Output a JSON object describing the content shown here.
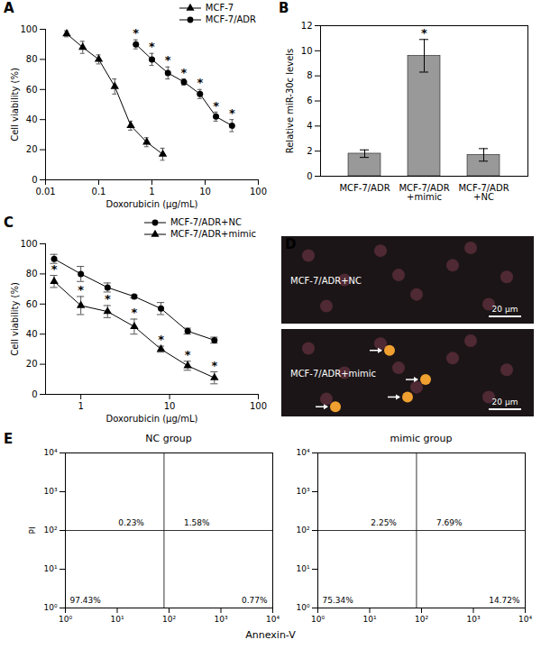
{
  "chart_data": [
    {
      "panel": "A",
      "type": "line",
      "xlabel": "Doxorubicin (μg/mL)",
      "ylabel": "Cell viability (%)",
      "log": "x",
      "xlim": [
        0.01,
        100
      ],
      "xticks": [
        0.01,
        0.1,
        1,
        10,
        100
      ],
      "ylim": [
        0,
        100
      ],
      "yticks": [
        0,
        20,
        40,
        60,
        80,
        100
      ],
      "legend": "top",
      "series": [
        {
          "name": "MCF-7",
          "color": "#000000",
          "marker": "triangle",
          "x": [
            0.025,
            0.05,
            0.1,
            0.2,
            0.4,
            0.8,
            1.6
          ],
          "values": [
            97,
            88,
            80,
            62,
            36,
            25,
            17
          ],
          "errors": [
            2,
            4,
            3,
            5,
            3,
            3,
            4
          ]
        },
        {
          "name": "MCF-7/ADR",
          "color": "#000000",
          "marker": "circle",
          "x": [
            0.5,
            1,
            2,
            4,
            8,
            16,
            32
          ],
          "values": [
            90,
            80,
            71,
            65,
            57,
            42,
            36
          ],
          "errors": [
            3,
            4,
            4,
            2,
            3,
            3,
            4
          ],
          "annotation": "*"
        }
      ]
    },
    {
      "panel": "B",
      "type": "bar",
      "ylabel": "Relative miR-30c levels",
      "categories": [
        "MCF-7/ADR",
        "MCF-7/ADR\n+mimic",
        "MCF-7/ADR\n+NC"
      ],
      "values": [
        1.8,
        9.6,
        1.7
      ],
      "errors": [
        0.3,
        1.3,
        0.5
      ],
      "annotations": [
        null,
        "*",
        null
      ],
      "color": "#999999",
      "ylim": [
        0,
        12
      ],
      "yticks": [
        0,
        2,
        4,
        6,
        8,
        10,
        12
      ]
    },
    {
      "panel": "C",
      "type": "line",
      "xlabel": "Doxorubicin (μg/mL)",
      "ylabel": "Cell viability (%)",
      "log": "x",
      "xlim": [
        0.4,
        100
      ],
      "xticks": [
        1,
        10,
        100
      ],
      "ylim": [
        0,
        100
      ],
      "yticks": [
        0,
        20,
        40,
        60,
        80,
        100
      ],
      "legend": "top",
      "series": [
        {
          "name": "MCF-7/ADR+NC",
          "color": "#000000",
          "marker": "circle",
          "x": [
            0.5,
            1,
            2,
            4,
            8,
            16,
            32
          ],
          "values": [
            90,
            80,
            71,
            65,
            57,
            42,
            36
          ],
          "errors": [
            3,
            5,
            3,
            1,
            4,
            2,
            2
          ]
        },
        {
          "name": "MCF-7/ADR+mimic",
          "color": "#000000",
          "marker": "triangle",
          "x": [
            0.5,
            1,
            2,
            4,
            8,
            16,
            32
          ],
          "values": [
            75,
            59,
            55,
            45,
            30,
            19,
            11
          ],
          "errors": [
            4,
            6,
            4,
            5,
            2,
            3,
            4
          ],
          "annotation": "*"
        }
      ]
    },
    {
      "panel": "D",
      "type": "image",
      "images": [
        {
          "label": "MCF-7/ADR+NC",
          "scale_bar": "20 μm"
        },
        {
          "label": "MCF-7/ADR+mimic",
          "scale_bar": "20 μm"
        }
      ]
    },
    {
      "panel": "E",
      "type": "flow_cytometry",
      "xlabel": "Annexin-V",
      "ylabel": "PI",
      "log": true,
      "xlim": [
        1,
        10000
      ],
      "ylim": [
        1,
        10000
      ],
      "xticks": [
        {
          "value": 1,
          "label": "10⁰"
        },
        {
          "value": 10,
          "label": "10¹"
        },
        {
          "value": 100,
          "label": "10²"
        },
        {
          "value": 1000,
          "label": "10³"
        },
        {
          "value": 10000,
          "label": "10⁴"
        }
      ],
      "yticks": [
        {
          "value": 1,
          "label": "10⁰"
        },
        {
          "value": 10,
          "label": "10¹"
        },
        {
          "value": 100,
          "label": "10²"
        },
        {
          "value": 1000,
          "label": "10³"
        },
        {
          "value": 10000,
          "label": "10⁴"
        }
      ],
      "plots": [
        {
          "title": "NC group",
          "gates": {
            "x": 80,
            "y": 100
          },
          "quadrants": {
            "upper_left": {
              "value": 0.23,
              "label": "0.23%"
            },
            "upper_right": {
              "value": 1.58,
              "label": "1.58%"
            },
            "lower_left": {
              "value": 97.43,
              "label": "97.43%"
            },
            "lower_right": {
              "value": 0.77,
              "label": "0.77%"
            }
          }
        },
        {
          "title": "mimic group",
          "gates": {
            "x": 80,
            "y": 100
          },
          "quadrants": {
            "upper_left": {
              "value": 2.25,
              "label": "2.25%"
            },
            "upper_right": {
              "value": 7.69,
              "label": "7.69%"
            },
            "lower_left": {
              "value": 75.34,
              "label": "75.34%"
            },
            "lower_right": {
              "value": 14.72,
              "label": "14.72%"
            }
          }
        }
      ]
    }
  ]
}
